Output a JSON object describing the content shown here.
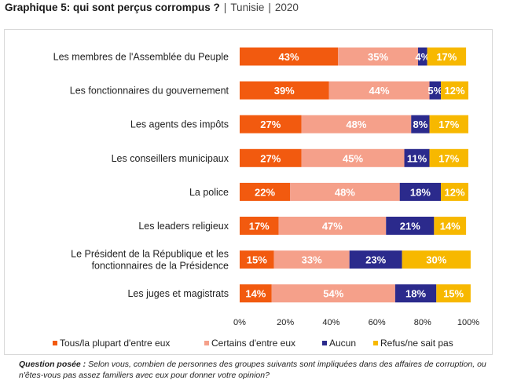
{
  "header": {
    "title": "Graphique 5: qui sont perçus corrompus ?",
    "country": "Tunisie",
    "year": "2020"
  },
  "chart_data": {
    "type": "bar",
    "orientation": "horizontal",
    "stacked": true,
    "categories": [
      "Les membres  de l'Assemblée du Peuple",
      "Les fonctionnaires du gouvernement",
      "Les agents des impôts",
      "Les conseillers municipaux",
      "La police",
      "Les leaders religieux",
      "Le Président de la République et les fonctionnaires de la Présidence",
      "Les juges et magistrats"
    ],
    "category_lines": [
      [
        "Les membres  de l'Assemblée du Peuple"
      ],
      [
        "Les fonctionnaires du gouvernement"
      ],
      [
        "Les agents des impôts"
      ],
      [
        "Les conseillers municipaux"
      ],
      [
        "La police"
      ],
      [
        "Les leaders religieux"
      ],
      [
        "Le Président de la République et les",
        "fonctionnaires de la Présidence"
      ],
      [
        "Les juges et magistrats"
      ]
    ],
    "series": [
      {
        "name": "Tous/la plupart d'entre eux",
        "color": "#F25A0F",
        "values": [
          43,
          39,
          27,
          27,
          22,
          17,
          15,
          14
        ]
      },
      {
        "name": "Certains d'entre eux",
        "color": "#F5A08A",
        "values": [
          35,
          44,
          48,
          45,
          48,
          47,
          33,
          54
        ]
      },
      {
        "name": "Aucun",
        "color": "#2B2A8C",
        "values": [
          4,
          5,
          8,
          11,
          18,
          21,
          23,
          18
        ]
      },
      {
        "name": "Refus/ne sait pas",
        "color": "#F7B800",
        "values": [
          17,
          12,
          17,
          17,
          12,
          14,
          30,
          15
        ]
      }
    ],
    "value_suffix": "%",
    "xlim": [
      0,
      100
    ],
    "xticks": [
      "0%",
      "20%",
      "40%",
      "60%",
      "80%",
      "100%"
    ],
    "gridlines": false,
    "legend_position": "bottom"
  },
  "footnote": {
    "label": "Question posée :",
    "text": " Selon vous, combien de personnes des groupes suivants sont impliquées dans des affaires de corruption, ou n'êtes-vous pas assez familiers avec eux pour donner votre opinion?"
  }
}
